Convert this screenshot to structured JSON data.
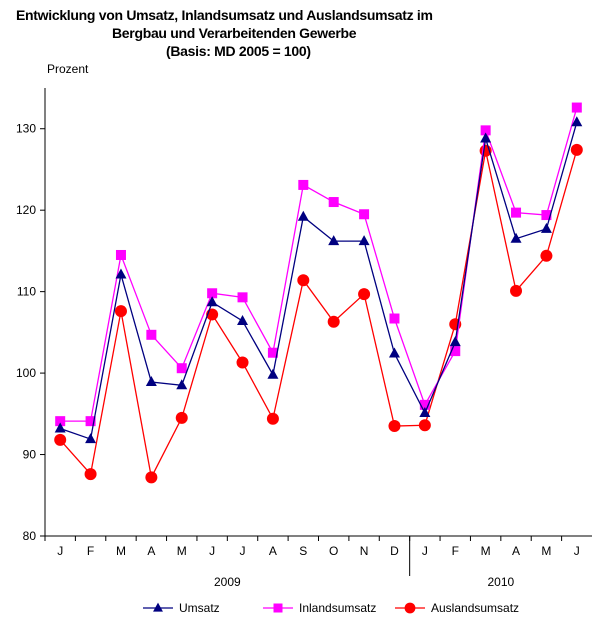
{
  "chart_data": {
    "type": "line",
    "title": [
      "Entwicklung von Umsatz, Inlandsumsatz und Auslandsumsatz im",
      "Bergbau  und  Verarbeitenden Gewerbe",
      "(Basis: MD 2005 = 100)"
    ],
    "ylabel": "Prozent",
    "ylim": [
      80,
      135
    ],
    "yticks": [
      80,
      90,
      100,
      110,
      120,
      130
    ],
    "categories": [
      "J",
      "F",
      "M",
      "A",
      "M",
      "J",
      "J",
      "A",
      "S",
      "O",
      "N",
      "D",
      "J",
      "F",
      "M",
      "A",
      "M",
      "J"
    ],
    "groups": [
      {
        "label": "2009",
        "count": 12
      },
      {
        "label": "2010",
        "count": 6
      }
    ],
    "grid": false,
    "legend_position": "bottom",
    "series": [
      {
        "name": "Umsatz",
        "color": "#000080",
        "marker": "triangle",
        "values": [
          93.2,
          91.9,
          112.1,
          98.9,
          98.5,
          108.7,
          106.4,
          99.8,
          119.2,
          116.2,
          116.2,
          102.4,
          95.1,
          103.8,
          128.8,
          116.5,
          117.7,
          130.8
        ]
      },
      {
        "name": "Inlandsumsatz",
        "color": "#FF00FF",
        "marker": "square",
        "values": [
          94.1,
          94.1,
          114.5,
          104.7,
          100.6,
          109.8,
          109.3,
          102.5,
          123.1,
          121.0,
          119.5,
          106.7,
          96.1,
          102.7,
          129.8,
          119.7,
          119.4,
          132.6
        ]
      },
      {
        "name": "Auslandsumsatz",
        "color": "#FF0000",
        "marker": "circle",
        "values": [
          91.8,
          87.6,
          107.6,
          87.2,
          94.5,
          107.2,
          101.3,
          94.4,
          111.4,
          106.3,
          109.7,
          93.5,
          93.6,
          106.0,
          127.3,
          110.1,
          114.4,
          127.4
        ]
      }
    ]
  }
}
